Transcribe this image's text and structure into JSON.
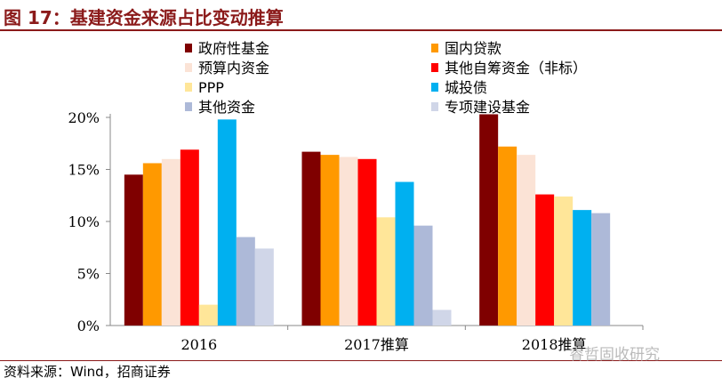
{
  "title": "图 17：基建资金来源占比变动推算",
  "source": "资料来源：Wind，招商证券",
  "watermark": "睿哲固收研究",
  "chart_data": {
    "type": "bar",
    "title": "基建资金来源占比变动推算",
    "categories": [
      "2016",
      "2017推算",
      "2018推算"
    ],
    "ylim": [
      0,
      20
    ],
    "yticks": [
      "0%",
      "5%",
      "10%",
      "15%",
      "20%"
    ],
    "legend_position": "top",
    "series": [
      {
        "name": "政府性基金",
        "color": "#7f0000",
        "values": [
          14.5,
          16.7,
          20.3
        ]
      },
      {
        "name": "国内贷款",
        "color": "#ff9900",
        "values": [
          15.6,
          16.4,
          17.2
        ]
      },
      {
        "name": "预算内资金",
        "color": "#fbe3d6",
        "values": [
          16.0,
          16.2,
          16.4
        ]
      },
      {
        "name": "其他自筹资金（非标）",
        "color": "#ff0000",
        "values": [
          16.9,
          16.0,
          12.6
        ]
      },
      {
        "name": "PPP",
        "color": "#ffe699",
        "values": [
          2.0,
          10.4,
          12.4
        ]
      },
      {
        "name": "城投债",
        "color": "#00b0f0",
        "values": [
          19.8,
          13.8,
          11.1
        ]
      },
      {
        "name": "其他资金",
        "color": "#adb9d8",
        "values": [
          8.5,
          9.6,
          10.8
        ]
      },
      {
        "name": "专项建设基金",
        "color": "#d0d6e8",
        "values": [
          7.4,
          1.5,
          0
        ]
      }
    ]
  }
}
